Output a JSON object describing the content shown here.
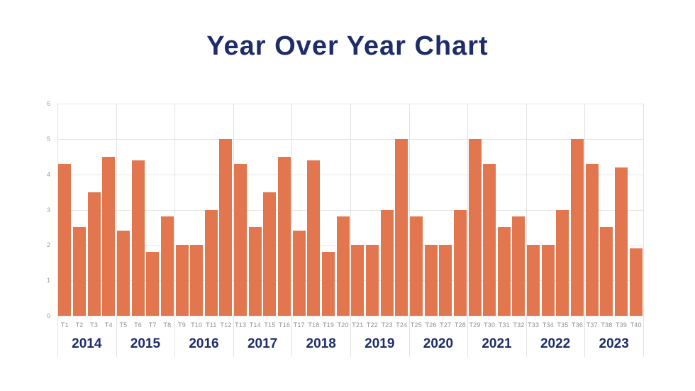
{
  "title": "Year Over Year Chart",
  "colors": {
    "bar": "#E1764F",
    "title_navy": "#1E2D69",
    "axis_gray": "#9B9B9B",
    "tick_gray": "#8F8F8F",
    "gridline": "#E7E7E7",
    "background": "#FFFFFF"
  },
  "chart_data": {
    "type": "bar",
    "title": "Year Over Year Chart",
    "xlabel": "",
    "ylabel": "",
    "ylim": [
      0,
      6
    ],
    "yticks": [
      0,
      1,
      2,
      3,
      4,
      5,
      6
    ],
    "grid": "horizontal",
    "legend": "none",
    "bar_color": "#E1764F",
    "groups": [
      {
        "year": "2014",
        "categories": [
          "T1",
          "T2",
          "T3",
          "T4"
        ],
        "values": [
          4.3,
          2.5,
          3.5,
          4.5
        ]
      },
      {
        "year": "2015",
        "categories": [
          "T5",
          "T6",
          "T7",
          "T8"
        ],
        "values": [
          2.4,
          4.4,
          1.8,
          2.8
        ]
      },
      {
        "year": "2016",
        "categories": [
          "T9",
          "T10",
          "T11",
          "T12"
        ],
        "values": [
          2.0,
          2.0,
          3.0,
          5.0
        ]
      },
      {
        "year": "2017",
        "categories": [
          "T13",
          "T14",
          "T15",
          "T16"
        ],
        "values": [
          4.3,
          2.5,
          3.5,
          4.5
        ]
      },
      {
        "year": "2018",
        "categories": [
          "T17",
          "T18",
          "T19",
          "T20"
        ],
        "values": [
          2.4,
          4.4,
          1.8,
          2.8
        ]
      },
      {
        "year": "2019",
        "categories": [
          "T21",
          "T22",
          "T23",
          "T24"
        ],
        "values": [
          2.0,
          2.0,
          3.0,
          5.0
        ]
      },
      {
        "year": "2020",
        "categories": [
          "T25",
          "T26",
          "T27",
          "T28"
        ],
        "values": [
          2.8,
          2.0,
          2.0,
          3.0
        ]
      },
      {
        "year": "2021",
        "categories": [
          "T29",
          "T30",
          "T31",
          "T32"
        ],
        "values": [
          5.0,
          4.3,
          2.5,
          2.8
        ]
      },
      {
        "year": "2022",
        "categories": [
          "T33",
          "T34",
          "T35",
          "T36"
        ],
        "values": [
          2.0,
          2.0,
          3.0,
          5.0
        ]
      },
      {
        "year": "2023",
        "categories": [
          "T37",
          "T38",
          "T39",
          "T40"
        ],
        "values": [
          4.3,
          2.5,
          4.2,
          1.9
        ]
      }
    ]
  }
}
